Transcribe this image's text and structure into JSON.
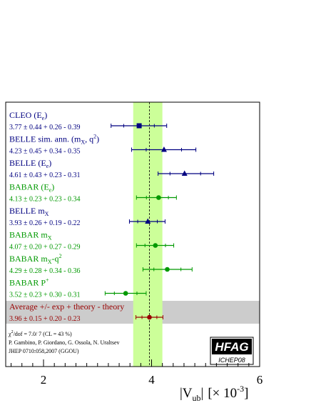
{
  "chart_data": {
    "type": "scatter",
    "title": "",
    "xlim": [
      1.3,
      6.0
    ],
    "xticks": [
      2,
      4,
      6
    ],
    "xlabel_main": "|V",
    "xlabel_sub": "ub",
    "xlabel_end": "|",
    "xlabel_unit_pre": "[× 10",
    "xlabel_unit_exp": "-3",
    "xlabel_unit_post": "]",
    "band": {
      "center": 3.96,
      "low": 3.66,
      "high": 4.2,
      "color": "#ccff99"
    },
    "central_line": 3.96,
    "measurements": [
      {
        "label": "CLEO (E",
        "label_sub": "e",
        "label_tail": ")",
        "value_text": "3.77 ± 0.44 + 0.26 - 0.39",
        "central": 3.77,
        "lo": 3.25,
        "hi": 4.28,
        "marker": "square",
        "color": "#000080"
      },
      {
        "label": "BELLE sim. ann. (m",
        "label_sub": "X",
        "label_tail": ", q",
        "label_sup": "2",
        "label_tail2": ")",
        "value_text": "4.23 ± 0.45 + 0.34 - 0.35",
        "central": 4.23,
        "lo": 3.63,
        "hi": 4.82,
        "marker": "triangle",
        "color": "#000080"
      },
      {
        "label": "BELLE (E",
        "label_sub": "e",
        "label_tail": ")",
        "value_text": "4.61 ± 0.43 + 0.23 - 0.31",
        "central": 4.61,
        "lo": 4.12,
        "hi": 5.15,
        "marker": "triangle",
        "color": "#000080"
      },
      {
        "label": "BABAR (E",
        "label_sub": "e",
        "label_tail": ")",
        "value_text": "4.13 ± 0.23 + 0.23 - 0.34",
        "central": 4.13,
        "lo": 3.72,
        "hi": 4.46,
        "marker": "circle",
        "color": "#009900"
      },
      {
        "label": "BELLE m",
        "label_sub": "X",
        "label_tail": "",
        "value_text": "3.93 ± 0.26 + 0.19 - 0.22",
        "central": 3.93,
        "lo": 3.59,
        "hi": 4.25,
        "marker": "triangle",
        "color": "#000080"
      },
      {
        "label": "BABAR m",
        "label_sub": "X",
        "label_tail": "",
        "value_text": "4.07 ± 0.20 + 0.27 - 0.29",
        "central": 4.07,
        "lo": 3.72,
        "hi": 4.41,
        "marker": "circle",
        "color": "#009900"
      },
      {
        "label": "BABAR m",
        "label_sub": "X",
        "label_tail": "-q",
        "label_sup": "2",
        "label_tail2": "",
        "value_text": "4.29 ± 0.28 + 0.34 - 0.36",
        "central": 4.29,
        "lo": 3.84,
        "hi": 4.75,
        "marker": "circle",
        "color": "#009900"
      },
      {
        "label": "BABAR P",
        "label_sup": "+",
        "label_tail": "",
        "value_text": "3.52 ± 0.23 + 0.30 - 0.31",
        "central": 3.52,
        "lo": 3.14,
        "hi": 3.9,
        "marker": "circle",
        "color": "#009900"
      },
      {
        "label": "Average +/- exp + theory - theory",
        "label_tail": "",
        "value_text": "3.96 ± 0.15 + 0.20 - 0.23",
        "central": 3.96,
        "lo": 3.71,
        "hi": 4.21,
        "marker": "circle",
        "color": "#990000",
        "highlight": true
      }
    ],
    "footnote": {
      "chi2_pre": "χ",
      "chi2_sup": "2",
      "chi2_post": "/dof = 7.0/ 7 (CL =  43 %)",
      "authors": "P. Gambino, P. Giordano, G. Ossola, N. Uraltsev",
      "reference": "JHEP 0710:058,2007 (GGOU)"
    },
    "badge": {
      "main": "HFAG",
      "sub": "ICHEP08"
    },
    "highlight_band_color": "#cccccc"
  }
}
